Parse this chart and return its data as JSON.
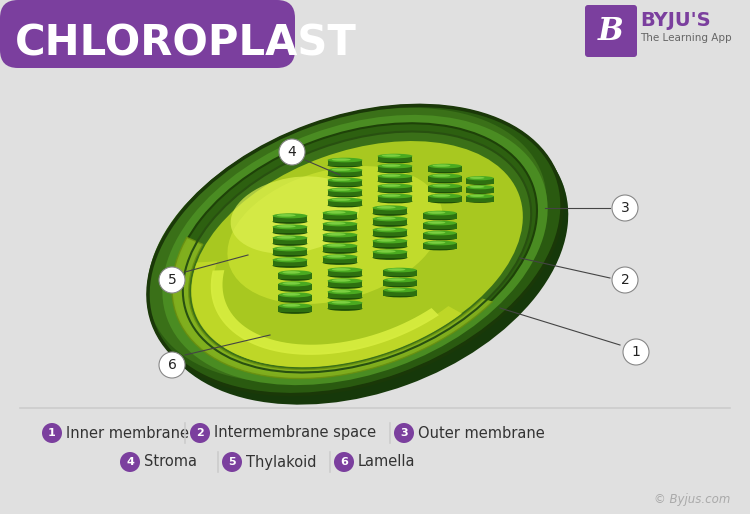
{
  "title": "CHLOROPLAST",
  "title_color": "#ffffff",
  "title_bg_color": "#7b3f9e",
  "bg_color": "#e0e0e0",
  "label_circle_color": "#7b3f9e",
  "label_text_color": "#ffffff",
  "byline": "© Byjus.com",
  "byline_color": "#aaaaaa",
  "separator_color": "#cccccc",
  "annotation_line_color": "#444444",
  "legend_row1": [
    {
      "num": "1",
      "text": "Inner membrane"
    },
    {
      "num": "2",
      "text": "Intermembrane space"
    },
    {
      "num": "3",
      "text": "Outer membrane"
    }
  ],
  "legend_row2": [
    {
      "num": "4",
      "text": "Stroma"
    },
    {
      "num": "5",
      "text": "Thylakoid"
    },
    {
      "num": "6",
      "text": "Lamella"
    }
  ],
  "outer_dark": "#1e4a0a",
  "outer_mid": "#2d6612",
  "outer_light": "#4a8c20",
  "intermem_color": "#6aaa30",
  "inner_dark": "#1a4008",
  "inner_mid": "#2a5c10",
  "stroma_dark": "#8ab820",
  "stroma_mid": "#b8d830",
  "stroma_light": "#d8f050",
  "thylakoid_dark": "#1e5008",
  "thylakoid_mid": "#2e7010",
  "thylakoid_light": "#4aaa20",
  "thylakoid_top": "#6acc30",
  "thylakoid_shine": "#90e050"
}
